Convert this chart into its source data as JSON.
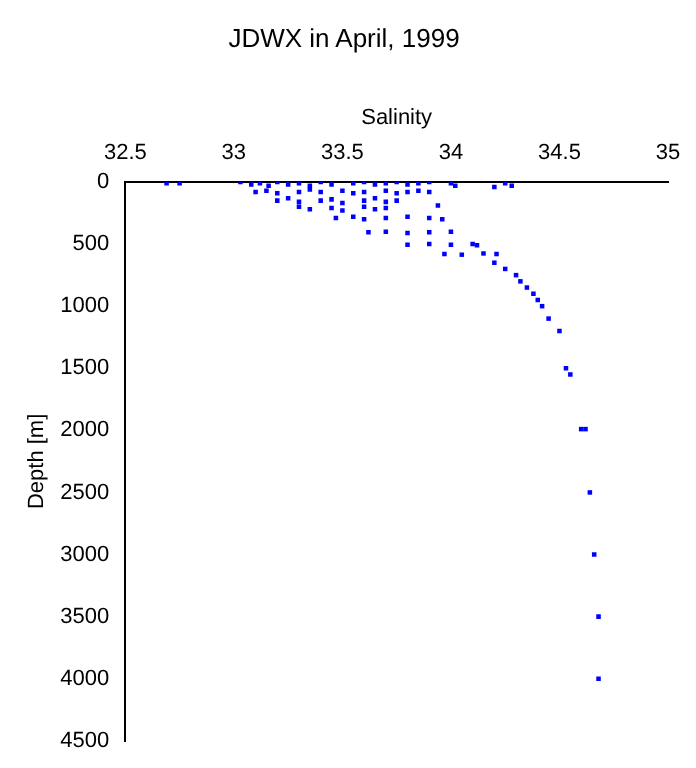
{
  "chart_data": {
    "type": "scatter",
    "title": "JDWX in April, 1999",
    "xlabel": "Salinity",
    "ylabel": "Depth [m]",
    "xlim": [
      32.5,
      35
    ],
    "xticks": [
      32.5,
      33,
      33.5,
      34,
      34.5,
      35
    ],
    "ylim": [
      4500,
      0
    ],
    "yticks": [
      0,
      500,
      1000,
      1500,
      2000,
      2500,
      3000,
      3500,
      4000,
      4500
    ],
    "grid": false,
    "legend": false,
    "marker": "square",
    "series": [
      {
        "color": "#0000ff",
        "x": [
          32.69,
          32.75,
          33.03,
          33.08,
          33.12,
          33.16,
          33.2,
          33.25,
          33.3,
          33.35,
          33.4,
          33.45,
          33.55,
          33.6,
          33.65,
          33.7,
          33.75,
          33.8,
          33.85,
          33.9,
          34.0,
          34.02,
          34.25,
          34.28,
          34.2,
          33.1,
          33.15,
          33.2,
          33.3,
          33.35,
          33.4,
          33.5,
          33.55,
          33.6,
          33.7,
          33.75,
          33.8,
          33.85,
          33.9,
          33.2,
          33.25,
          33.3,
          33.4,
          33.45,
          33.5,
          33.6,
          33.65,
          33.7,
          33.75,
          33.94,
          33.3,
          33.35,
          33.45,
          33.5,
          33.6,
          33.65,
          33.7,
          33.47,
          33.55,
          33.6,
          33.7,
          33.8,
          33.9,
          33.96,
          33.62,
          33.7,
          33.8,
          33.9,
          34.0,
          33.8,
          33.9,
          34.0,
          34.1,
          34.12,
          33.97,
          34.05,
          34.15,
          34.21,
          34.2,
          34.25,
          34.3,
          34.32,
          34.35,
          34.38,
          34.4,
          34.42,
          34.45,
          34.5,
          34.53,
          34.55,
          34.6,
          34.62,
          34.64,
          34.66,
          34.68,
          34.68
        ],
        "values": [
          10,
          10,
          0,
          20,
          10,
          30,
          0,
          20,
          10,
          30,
          0,
          20,
          10,
          0,
          20,
          10,
          0,
          20,
          10,
          0,
          10,
          30,
          10,
          30,
          40,
          80,
          70,
          90,
          80,
          60,
          80,
          70,
          90,
          80,
          70,
          90,
          80,
          70,
          80,
          150,
          130,
          160,
          150,
          140,
          170,
          150,
          130,
          160,
          150,
          190,
          200,
          220,
          210,
          230,
          200,
          220,
          210,
          290,
          280,
          300,
          290,
          280,
          290,
          300,
          405,
          400,
          410,
          405,
          400,
          505,
          500,
          505,
          500,
          510,
          580,
          585,
          575,
          580,
          650,
          700,
          750,
          800,
          850,
          900,
          950,
          1000,
          1100,
          1200,
          1500,
          1550,
          1990,
          1990,
          2500,
          3000,
          3500,
          4000
        ]
      }
    ]
  }
}
